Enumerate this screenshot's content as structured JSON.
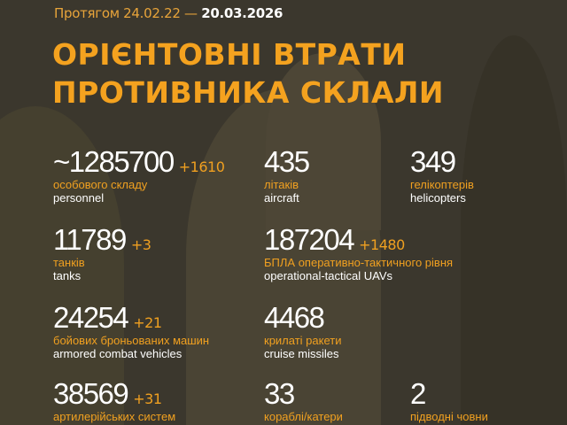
{
  "header": {
    "period_prefix": "Протягом 24.02.22 —",
    "period_end": "20.03.2026",
    "title_line1": "ОРІЄНТОВНІ ВТРАТИ",
    "title_line2": "ПРОТИВНИКА СКЛАЛИ"
  },
  "colors": {
    "accent": "#f0a020",
    "background": "#3b372d",
    "text": "#ffffff"
  },
  "stats": [
    {
      "value": "~1285700",
      "delta": "+1610",
      "ua": "особового складу",
      "en": "personnel"
    },
    {
      "value": "435",
      "delta": "",
      "ua": "літаків",
      "en": "aircraft"
    },
    {
      "value": "349",
      "delta": "",
      "ua": "гелікоптерів",
      "en": "helicopters"
    },
    {
      "value": "11789",
      "delta": "+3",
      "ua": "танків",
      "en": "tanks"
    },
    {
      "value": "187204",
      "delta": "+1480",
      "ua": "БПЛА оперативно-тактичного рівня",
      "en": "operational-tactical UAVs"
    },
    {
      "value": "24254",
      "delta": "+21",
      "ua": "бойових броньованих машин",
      "en": "armored combat vehicles"
    },
    {
      "value": "4468",
      "delta": "",
      "ua": "крилаті ракети",
      "en": "cruise missiles"
    },
    {
      "value": "38569",
      "delta": "+31",
      "ua": "артилерійських систем",
      "en": ""
    },
    {
      "value": "33",
      "delta": "",
      "ua": "кораблі/катери",
      "en": ""
    },
    {
      "value": "2",
      "delta": "",
      "ua": "підводні човни",
      "en": ""
    }
  ]
}
